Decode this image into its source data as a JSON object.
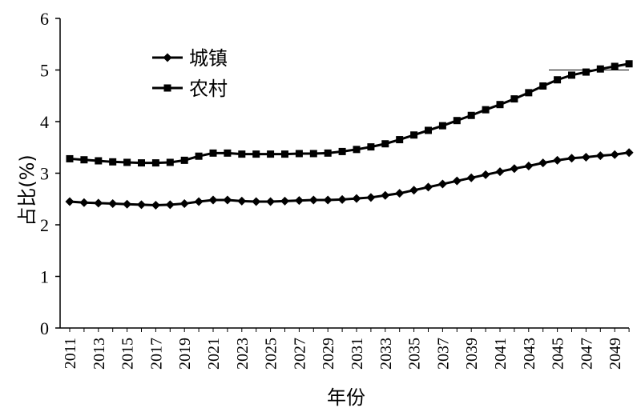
{
  "chart_data": {
    "type": "line",
    "xlabel": "年份",
    "ylabel": "占比(%)",
    "ylim": [
      0,
      6
    ],
    "yticks": [
      0,
      1,
      2,
      3,
      4,
      5,
      6
    ],
    "xlim": [
      2011,
      2050
    ],
    "xticks": [
      2011,
      2013,
      2015,
      2017,
      2019,
      2021,
      2023,
      2025,
      2027,
      2029,
      2031,
      2033,
      2035,
      2037,
      2039,
      2041,
      2043,
      2045,
      2047,
      2049
    ],
    "grid": false,
    "legend_position": "top-left",
    "x": [
      2011,
      2012,
      2013,
      2014,
      2015,
      2016,
      2017,
      2018,
      2019,
      2020,
      2021,
      2022,
      2023,
      2024,
      2025,
      2026,
      2027,
      2028,
      2029,
      2030,
      2031,
      2032,
      2033,
      2034,
      2035,
      2036,
      2037,
      2038,
      2039,
      2040,
      2041,
      2042,
      2043,
      2044,
      2045,
      2046,
      2047,
      2048,
      2049,
      2050
    ],
    "series": [
      {
        "name": "城镇",
        "marker": "diamond",
        "color": "#000000",
        "values": [
          2.45,
          2.43,
          2.42,
          2.41,
          2.4,
          2.39,
          2.38,
          2.39,
          2.41,
          2.45,
          2.48,
          2.48,
          2.46,
          2.45,
          2.45,
          2.46,
          2.47,
          2.48,
          2.48,
          2.49,
          2.51,
          2.53,
          2.57,
          2.61,
          2.67,
          2.73,
          2.79,
          2.85,
          2.91,
          2.97,
          3.03,
          3.09,
          3.14,
          3.2,
          3.25,
          3.29,
          3.31,
          3.34,
          3.36,
          3.4
        ]
      },
      {
        "name": "农村",
        "marker": "square",
        "color": "#000000",
        "values": [
          3.28,
          3.26,
          3.24,
          3.22,
          3.21,
          3.2,
          3.2,
          3.21,
          3.25,
          3.33,
          3.39,
          3.39,
          3.37,
          3.37,
          3.37,
          3.37,
          3.38,
          3.38,
          3.39,
          3.42,
          3.46,
          3.51,
          3.57,
          3.65,
          3.74,
          3.83,
          3.92,
          4.02,
          4.12,
          4.23,
          4.33,
          4.44,
          4.56,
          4.69,
          4.81,
          4.9,
          4.96,
          5.02,
          5.07,
          5.12
        ]
      }
    ]
  }
}
